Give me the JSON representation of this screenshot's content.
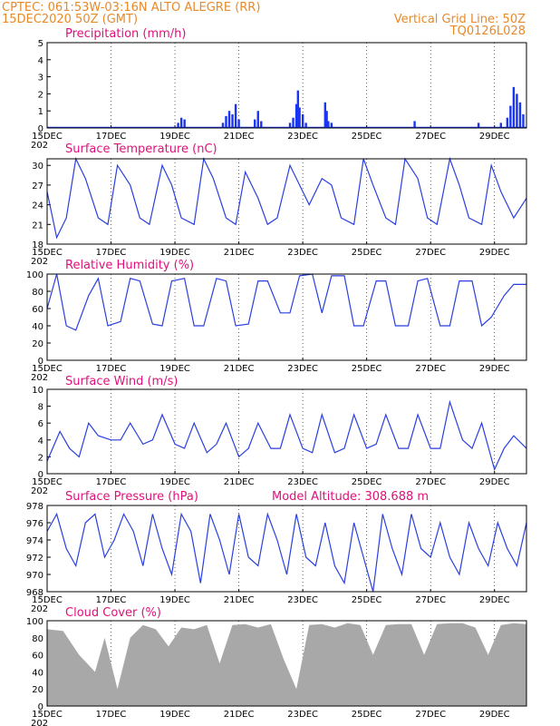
{
  "header": {
    "line1": "CPTEC:   061:53W-03:16N   ALTO ALEGRE (RR)",
    "line2": "15DEC2020 50Z (GMT)",
    "right1": "Vertical Grid Line: 50Z",
    "right2": "TQ0126L028"
  },
  "x_ticks": [
    "15DEC",
    "17DEC",
    "19DEC",
    "21DEC",
    "23DEC",
    "25DEC",
    "27DEC",
    "29DEC"
  ],
  "year_fragment": "202",
  "panels": {
    "precip": {
      "title": "Precipitation (mm/h)",
      "yticks": [
        "0",
        "1",
        "2",
        "3",
        "4",
        "5"
      ]
    },
    "temp": {
      "title": "Surface Temperature (nC)",
      "yticks": [
        "18",
        "21",
        "24",
        "27",
        "30"
      ]
    },
    "rh": {
      "title": "Relative Humidity (%)",
      "yticks": [
        "0",
        "20",
        "40",
        "60",
        "80",
        "100"
      ]
    },
    "wind": {
      "title": "Surface Wind (m/s)",
      "yticks": [
        "0",
        "2",
        "4",
        "6",
        "8",
        "10"
      ]
    },
    "pres": {
      "title": "Surface Pressure (hPa)",
      "altitude": "Model Altitude: 308.688 m",
      "yticks": [
        "968",
        "970",
        "972",
        "974",
        "976",
        "978"
      ]
    },
    "cloud": {
      "title": "Cloud Cover (%)",
      "yticks": [
        "0",
        "20",
        "40",
        "60",
        "80",
        "100"
      ]
    }
  },
  "colors": {
    "line": "#2a3fe0",
    "bar": "#1a35f0",
    "cloud": "#a8a8a8",
    "header": "#e8892a",
    "title": "#e0107a"
  },
  "chart_data": [
    {
      "type": "bar",
      "title": "Precipitation (mm/h)",
      "x_range_days": [
        15,
        30
      ],
      "ylim": [
        0,
        5
      ],
      "bars": [
        [
          19.1,
          0.3
        ],
        [
          19.2,
          0.6
        ],
        [
          19.3,
          0.5
        ],
        [
          20.5,
          0.3
        ],
        [
          20.6,
          0.7
        ],
        [
          20.7,
          1.0
        ],
        [
          20.8,
          0.8
        ],
        [
          20.9,
          1.4
        ],
        [
          21.0,
          0.5
        ],
        [
          21.5,
          0.5
        ],
        [
          21.6,
          1.0
        ],
        [
          21.7,
          0.4
        ],
        [
          22.6,
          0.3
        ],
        [
          22.7,
          0.6
        ],
        [
          22.8,
          1.4
        ],
        [
          22.85,
          2.2
        ],
        [
          22.9,
          1.2
        ],
        [
          23.0,
          0.8
        ],
        [
          23.1,
          0.3
        ],
        [
          23.7,
          1.5
        ],
        [
          23.75,
          1.0
        ],
        [
          23.8,
          0.4
        ],
        [
          23.9,
          0.3
        ],
        [
          26.5,
          0.4
        ],
        [
          28.5,
          0.3
        ],
        [
          29.2,
          0.3
        ],
        [
          29.4,
          0.6
        ],
        [
          29.5,
          1.3
        ],
        [
          29.6,
          2.4
        ],
        [
          29.7,
          2.0
        ],
        [
          29.8,
          1.5
        ],
        [
          29.9,
          0.8
        ]
      ]
    },
    {
      "type": "line",
      "title": "Surface Temperature (nC)",
      "ylim": [
        18,
        31
      ],
      "x": [
        15.0,
        15.3,
        15.6,
        15.9,
        16.2,
        16.6,
        16.9,
        17.2,
        17.6,
        17.9,
        18.2,
        18.6,
        18.9,
        19.2,
        19.6,
        19.9,
        20.2,
        20.6,
        20.9,
        21.2,
        21.6,
        21.9,
        22.2,
        22.6,
        22.9,
        23.2,
        23.6,
        23.9,
        24.2,
        24.6,
        24.9,
        25.2,
        25.6,
        25.9,
        26.2,
        26.6,
        26.9,
        27.2,
        27.6,
        27.9,
        28.2,
        28.6,
        28.9,
        29.2,
        29.6,
        30.0
      ],
      "y": [
        26,
        19,
        22,
        31,
        28,
        22,
        21,
        30,
        27,
        22,
        21,
        30,
        27,
        22,
        21,
        31,
        28,
        22,
        21,
        29,
        25,
        21,
        22,
        30,
        27,
        24,
        28,
        27,
        22,
        21,
        31,
        27,
        22,
        21,
        31,
        28,
        22,
        21,
        31,
        27,
        22,
        21,
        30,
        26,
        22,
        25
      ]
    },
    {
      "type": "line",
      "title": "Relative Humidity (%)",
      "ylim": [
        0,
        100
      ],
      "x": [
        15.0,
        15.3,
        15.6,
        15.9,
        16.3,
        16.6,
        16.9,
        17.3,
        17.6,
        17.9,
        18.3,
        18.6,
        18.9,
        19.3,
        19.6,
        19.9,
        20.3,
        20.6,
        20.9,
        21.3,
        21.6,
        21.9,
        22.3,
        22.6,
        22.9,
        23.3,
        23.6,
        23.9,
        24.3,
        24.6,
        24.9,
        25.3,
        25.6,
        25.9,
        26.3,
        26.6,
        26.9,
        27.3,
        27.6,
        27.9,
        28.3,
        28.6,
        28.9,
        29.3,
        29.6,
        30.0
      ],
      "y": [
        60,
        100,
        40,
        35,
        75,
        95,
        40,
        45,
        95,
        92,
        42,
        40,
        92,
        95,
        40,
        40,
        95,
        92,
        40,
        42,
        92,
        92,
        55,
        55,
        98,
        100,
        55,
        98,
        98,
        40,
        40,
        92,
        92,
        40,
        40,
        92,
        95,
        40,
        40,
        92,
        92,
        40,
        50,
        75,
        88,
        88
      ]
    },
    {
      "type": "line",
      "title": "Surface Wind (m/s)",
      "ylim": [
        0,
        10
      ],
      "x": [
        15.0,
        15.4,
        15.7,
        16.0,
        16.3,
        16.6,
        17.0,
        17.3,
        17.6,
        18.0,
        18.3,
        18.6,
        19.0,
        19.3,
        19.6,
        20.0,
        20.3,
        20.6,
        21.0,
        21.3,
        21.6,
        22.0,
        22.3,
        22.6,
        23.0,
        23.3,
        23.6,
        24.0,
        24.3,
        24.6,
        25.0,
        25.3,
        25.6,
        26.0,
        26.3,
        26.6,
        27.0,
        27.3,
        27.6,
        28.0,
        28.3,
        28.6,
        29.0,
        29.3,
        29.6,
        30.0
      ],
      "y": [
        1.5,
        5,
        3,
        2,
        6,
        4.5,
        4,
        4,
        6,
        3.5,
        4,
        7,
        3.5,
        3,
        6,
        2.5,
        3.5,
        6,
        2,
        3,
        6,
        3,
        3,
        7,
        3,
        2.5,
        7,
        2.5,
        3,
        7,
        3,
        3.5,
        7,
        3,
        3,
        7,
        3,
        3,
        8.5,
        4,
        3,
        6,
        0.5,
        3,
        4.5,
        3
      ]
    },
    {
      "type": "line",
      "title": "Surface Pressure (hPa)",
      "ylim": [
        968,
        978
      ],
      "x": [
        15.0,
        15.3,
        15.6,
        15.9,
        16.2,
        16.5,
        16.8,
        17.1,
        17.4,
        17.7,
        18.0,
        18.3,
        18.6,
        18.9,
        19.2,
        19.5,
        19.8,
        20.1,
        20.4,
        20.7,
        21.0,
        21.3,
        21.6,
        21.9,
        22.2,
        22.5,
        22.8,
        23.1,
        23.4,
        23.7,
        24.0,
        24.3,
        24.6,
        24.9,
        25.2,
        25.5,
        25.8,
        26.1,
        26.4,
        26.7,
        27.0,
        27.3,
        27.6,
        27.9,
        28.2,
        28.5,
        28.8,
        29.1,
        29.4,
        29.7,
        30.0
      ],
      "y": [
        975,
        977,
        973,
        971,
        976,
        977,
        972,
        974,
        977,
        975,
        971,
        977,
        973,
        970,
        977,
        975,
        969,
        977,
        974,
        970,
        977,
        972,
        971,
        977,
        974,
        970,
        977,
        972,
        971,
        976,
        971,
        969,
        976,
        972,
        968,
        977,
        973,
        970,
        977,
        973,
        972,
        976,
        972,
        970,
        976,
        973,
        971,
        976,
        973,
        971,
        976
      ]
    },
    {
      "type": "area",
      "title": "Cloud Cover (%)",
      "ylim": [
        0,
        100
      ],
      "x": [
        15.0,
        15.5,
        16.0,
        16.5,
        16.8,
        17.2,
        17.6,
        18.0,
        18.4,
        18.8,
        19.2,
        19.6,
        20.0,
        20.4,
        20.8,
        21.2,
        21.6,
        22.0,
        22.4,
        22.8,
        23.2,
        23.6,
        24.0,
        24.4,
        24.8,
        25.2,
        25.6,
        26.0,
        26.4,
        26.8,
        27.2,
        27.6,
        28.0,
        28.4,
        28.8,
        29.2,
        29.6,
        30.0
      ],
      "y": [
        90,
        88,
        60,
        40,
        80,
        20,
        80,
        95,
        90,
        70,
        92,
        90,
        95,
        50,
        95,
        96,
        92,
        96,
        55,
        20,
        95,
        96,
        92,
        97,
        95,
        60,
        95,
        96,
        96,
        60,
        96,
        97,
        97,
        92,
        60,
        95,
        97,
        96
      ]
    }
  ]
}
